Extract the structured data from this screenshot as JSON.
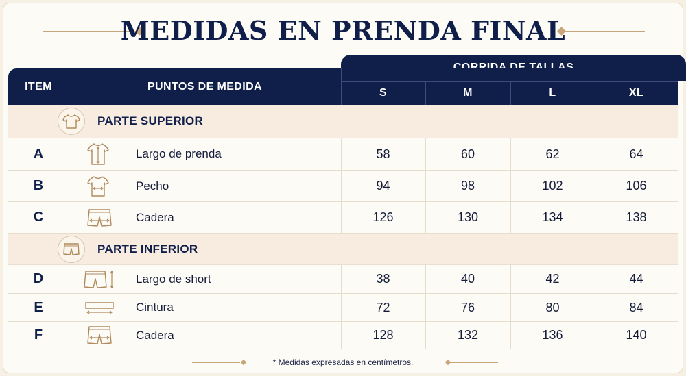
{
  "title": "MEDIDAS EN PRENDA FINAL",
  "header": {
    "item": "ITEM",
    "points": "PUNTOS DE MEDIDA",
    "sizes_group": "CORRIDA DE TALLAS",
    "sizes": [
      "S",
      "M",
      "L",
      "XL"
    ]
  },
  "sections": [
    {
      "label": "PARTE SUPERIOR",
      "icon": "tshirt-icon",
      "rows": [
        {
          "item": "A",
          "label": "Largo de prenda",
          "icon": "tshirt-length-icon",
          "values": [
            "58",
            "60",
            "62",
            "64"
          ]
        },
        {
          "item": "B",
          "label": "Pecho",
          "icon": "tshirt-chest-icon",
          "values": [
            "94",
            "98",
            "102",
            "106"
          ]
        },
        {
          "item": "C",
          "label": "Cadera",
          "icon": "shorts-hip-icon",
          "values": [
            "126",
            "130",
            "134",
            "138"
          ]
        }
      ]
    },
    {
      "label": "PARTE INFERIOR",
      "icon": "shorts-icon",
      "rows": [
        {
          "item": "D",
          "label": "Largo de short",
          "icon": "shorts-length-icon",
          "values": [
            "38",
            "40",
            "42",
            "44"
          ]
        },
        {
          "item": "E",
          "label": "Cintura",
          "icon": "waistband-icon",
          "values": [
            "72",
            "76",
            "80",
            "84"
          ]
        },
        {
          "item": "F",
          "label": "Cadera",
          "icon": "shorts-hip-icon",
          "values": [
            "128",
            "132",
            "136",
            "140"
          ]
        }
      ]
    }
  ],
  "footnote": "* Medidas expresadas en centímetros.",
  "colors": {
    "navy": "#0f1f4a",
    "gold": "#c9a57a",
    "section_bg": "#f8ebdf",
    "page_bg": "#fdfbf6"
  }
}
